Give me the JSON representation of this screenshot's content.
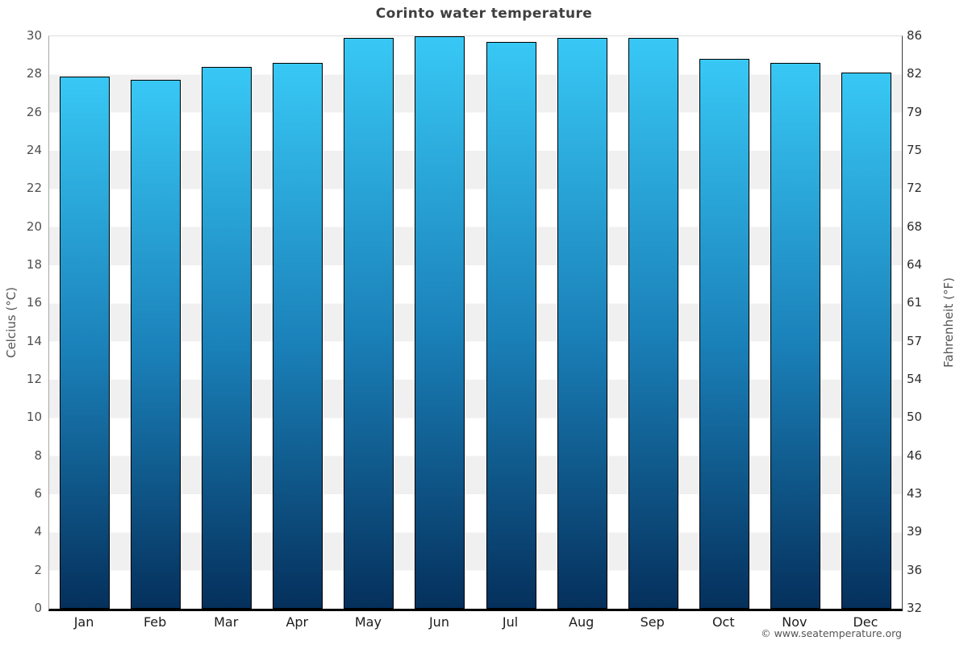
{
  "title": "Corinto water temperature",
  "copyright": "© www.seatemperature.org",
  "axes": {
    "left_label": "Celcius (°C)",
    "right_label": "Fahrenheit (°F)",
    "celsius_ticks": [
      30,
      28,
      26,
      24,
      22,
      20,
      18,
      16,
      14,
      12,
      10,
      8,
      6,
      4,
      2,
      0
    ],
    "fahrenheit_ticks": [
      86,
      82,
      79,
      75,
      72,
      68,
      64,
      61,
      57,
      54,
      50,
      46,
      43,
      39,
      36,
      32
    ]
  },
  "chart_data": {
    "type": "bar",
    "title": "Corinto water temperature",
    "categories": [
      "Jan",
      "Feb",
      "Mar",
      "Apr",
      "May",
      "Jun",
      "Jul",
      "Aug",
      "Sep",
      "Oct",
      "Nov",
      "Dec"
    ],
    "values": [
      27.9,
      27.7,
      28.4,
      28.6,
      29.9,
      30.0,
      29.7,
      29.9,
      29.9,
      28.8,
      28.6,
      28.1
    ],
    "xlabel": "",
    "ylabel": "Celcius (°C)",
    "y2label": "Fahrenheit (°F)",
    "ylim": [
      0,
      30
    ],
    "legend": "none",
    "background_bands": {
      "interval_c": 2,
      "colors": [
        "#ffffff",
        "#f0f0f0"
      ]
    },
    "bar_style": {
      "gradient_top": "#38c8f5",
      "gradient_mid": "#1a80b8",
      "gradient_bottom": "#05305c",
      "border_color": "#000000"
    }
  }
}
